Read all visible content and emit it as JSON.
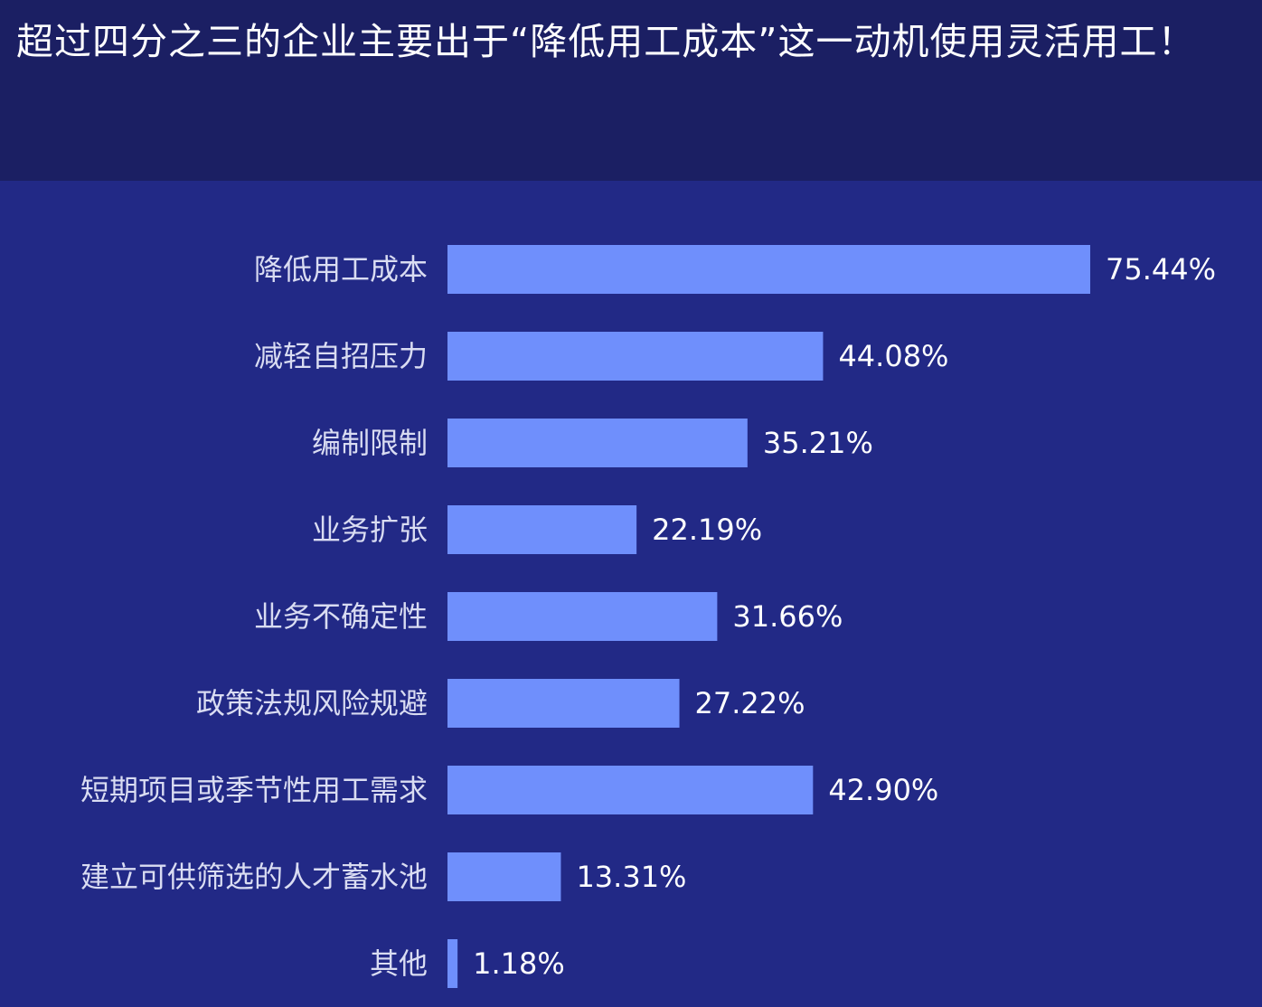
{
  "headline": "超过四分之三的企业主要出于“降低用工成本”这一动机使用灵活用工！",
  "colors": {
    "background": "#222986",
    "header_background": "#1b1f63",
    "bar": "#6f8ffc",
    "category_text": "#d9dcf2",
    "value_text": "#ffffff"
  },
  "chart_data": {
    "type": "bar",
    "orientation": "horizontal",
    "title": "",
    "xlabel": "",
    "ylabel": "",
    "xlim": [
      0,
      75.44
    ],
    "grid": false,
    "legend": "none",
    "categories": [
      "降低用工成本",
      "减轻自招压力",
      "编制限制",
      "业务扩张",
      "业务不确定性",
      "政策法规风险规避",
      "短期项目或季节性用工需求",
      "建立可供筛选的人才蓄水池",
      "其他"
    ],
    "values": [
      75.44,
      44.08,
      35.21,
      22.19,
      31.66,
      27.22,
      42.9,
      13.31,
      1.18
    ],
    "value_labels": [
      "75.44%",
      "44.08%",
      "35.21%",
      "22.19%",
      "31.66%",
      "27.22%",
      "42.90%",
      "13.31%",
      "1.18%"
    ]
  }
}
